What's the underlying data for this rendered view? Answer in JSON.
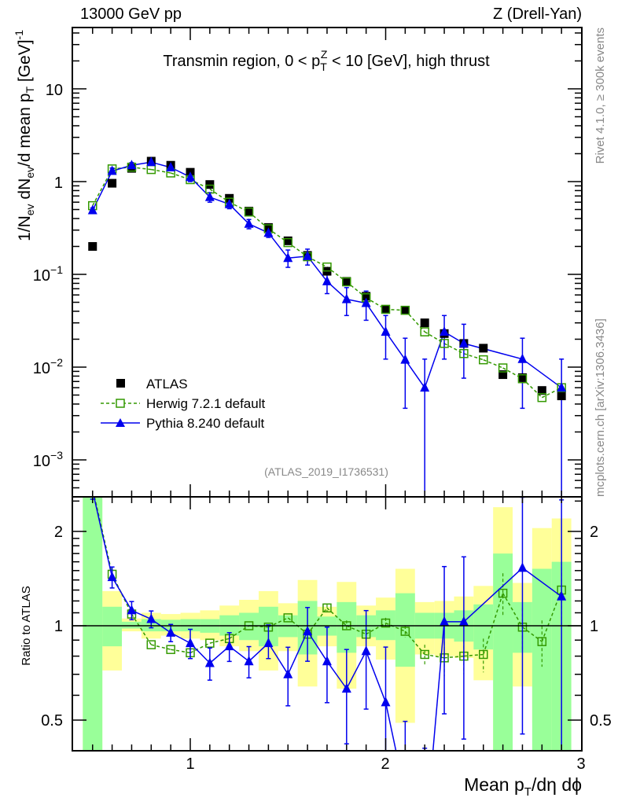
{
  "chart_data": {
    "type": "line",
    "header_left": "13000 GeV pp",
    "header_right": "Z (Drell-Yan)",
    "title": {
      "pre": "Transmin region, 0 < p",
      "sub": "T",
      "sup": "Z",
      "post": " < 10 [GeV], high thrust"
    },
    "ylabel": {
      "a": "1/N",
      "a_sub": "ev",
      "b": " dN",
      "b_sub": "ev",
      "c": "/d mean p",
      "c_sub": "T",
      "d": " [GeV]",
      "d_sup": "-1"
    },
    "xlabel": {
      "a": "Mean p",
      "a_sub": "T",
      "b": "/dη dϕ"
    },
    "ratio_ylabel": "Ratio to ATLAS",
    "side_text_top": "Rivet 4.1.0, ≥ 300k events",
    "side_text_bottom": "mcplots.cern.ch [arXiv:1306.3436]",
    "watermark": "(ATLAS_2019_I1736531)",
    "xlim": [
      0.4,
      3.0
    ],
    "ylim": [
      0.0004,
      45
    ],
    "ratio_ylim": [
      0.4,
      2.58
    ],
    "x_tick_labels": [
      "1",
      "2",
      "3"
    ],
    "y_tick_labels": [
      {
        "base": "10",
        "exp": ""
      },
      {
        "base": "1",
        "exp": ""
      },
      {
        "base": "10",
        "exp": "−1"
      },
      {
        "base": "10",
        "exp": "−2"
      },
      {
        "base": "10",
        "exp": "−3"
      }
    ],
    "ratio_tick_labels": [
      "2",
      "1",
      "0.5"
    ],
    "legend_position": "lower-left",
    "x": [
      0.5,
      0.6,
      0.7,
      0.8,
      0.9,
      1.0,
      1.1,
      1.2,
      1.3,
      1.4,
      1.5,
      1.6,
      1.7,
      1.8,
      1.9,
      2.0,
      2.1,
      2.2,
      2.3,
      2.4,
      2.5,
      2.6,
      2.7,
      2.8,
      2.9
    ],
    "series": [
      {
        "name": "ATLAS",
        "color": "#000000",
        "values": [
          0.2,
          0.96,
          1.39,
          1.66,
          1.5,
          1.26,
          0.93,
          0.66,
          0.48,
          0.32,
          0.23,
          0.16,
          0.108,
          0.084,
          0.058,
          0.042,
          0.041,
          0.03,
          0.023,
          0.018,
          0.016,
          0.0083,
          0.0077,
          0.0056,
          0.0049
        ]
      },
      {
        "name": "Herwig 7.2.1 default",
        "color": "#339900",
        "values": [
          0.55,
          1.37,
          1.43,
          1.35,
          1.24,
          1.05,
          0.83,
          0.6,
          0.47,
          0.31,
          0.22,
          0.155,
          0.12,
          0.083,
          0.056,
          0.042,
          0.041,
          0.024,
          0.018,
          0.014,
          0.012,
          0.0098,
          0.0075,
          0.0047,
          0.006
        ],
        "ratio": [
          2.75,
          1.46,
          1.09,
          0.87,
          0.84,
          0.82,
          0.88,
          0.91,
          1.0,
          0.99,
          1.06,
          0.94,
          1.14,
          1.0,
          0.94,
          1.02,
          0.96,
          0.81,
          0.79,
          0.8,
          0.81,
          1.27,
          0.99,
          0.89,
          1.3
        ],
        "ratio_err": [
          0.02,
          0.03,
          0.02,
          0.01,
          0.01,
          0.01,
          0.01,
          0.01,
          0.01,
          0.01,
          0.02,
          0.02,
          0.03,
          0.04,
          0.04,
          0.04,
          0.04,
          0.06,
          0.1,
          0.1,
          0.1,
          0.2,
          0.15,
          0.15,
          0.3
        ]
      },
      {
        "name": "Pythia 8.240 default",
        "color": "#0000ee",
        "values": [
          0.49,
          1.3,
          1.5,
          1.62,
          1.42,
          1.12,
          0.68,
          0.57,
          0.35,
          0.28,
          0.15,
          0.157,
          0.084,
          0.054,
          0.049,
          0.024,
          0.012,
          0.006,
          0.024,
          0.018,
          null,
          null,
          0.0122,
          null,
          0.006
        ],
        "err": [
          [
            0.46,
            0.52
          ],
          [
            1.2,
            1.4
          ],
          [
            1.4,
            1.6
          ],
          [
            1.52,
            1.72
          ],
          [
            1.33,
            1.51
          ],
          [
            1.0,
            1.24
          ],
          [
            0.6,
            0.76
          ],
          [
            0.51,
            0.63
          ],
          [
            0.31,
            0.39
          ],
          [
            0.25,
            0.32
          ],
          [
            0.119,
            0.183
          ],
          [
            0.126,
            0.187
          ],
          [
            0.062,
            0.108
          ],
          [
            0.036,
            0.072
          ],
          [
            0.032,
            0.066
          ],
          [
            0.0122,
            0.036
          ],
          [
            0.0036,
            0.0205
          ],
          [
            1e-05,
            0.0122
          ],
          [
            0.0122,
            0.036
          ],
          [
            0.0076,
            0.029
          ],
          null,
          null,
          [
            0.0036,
            0.0205
          ],
          null,
          [
            1e-05,
            0.0122
          ]
        ],
        "ratio": [
          2.7,
          1.43,
          1.12,
          1.05,
          0.95,
          0.88,
          0.76,
          0.86,
          0.77,
          0.88,
          0.7,
          0.96,
          0.77,
          0.63,
          0.83,
          0.57,
          0.29,
          0.2,
          1.03,
          1.03,
          null,
          null,
          1.53,
          null,
          1.24
        ]
      }
    ],
    "bands": {
      "stat_color": "#99ff99",
      "total_color": "#ffff99",
      "green": [
        [
          0.3,
          3
        ],
        [
          0.86,
          1.15
        ],
        [
          0.98,
          1.03
        ],
        [
          0.96,
          1.05
        ],
        [
          0.96,
          1.045
        ],
        [
          0.96,
          1.05
        ],
        [
          0.95,
          1.05
        ],
        [
          0.93,
          1.08
        ],
        [
          0.9,
          1.1
        ],
        [
          0.86,
          1.15
        ],
        [
          0.92,
          1.08
        ],
        [
          0.81,
          1.2
        ],
        [
          0.93,
          1.07
        ],
        [
          0.82,
          1.19
        ],
        [
          0.92,
          1.08
        ],
        [
          0.9,
          1.12
        ],
        [
          0.74,
          1.27
        ],
        [
          0.91,
          1.1
        ],
        [
          0.91,
          1.1
        ],
        [
          0.89,
          1.12
        ],
        [
          0.84,
          1.17
        ],
        [
          0.3,
          1.7
        ],
        [
          0.82,
          1.19
        ],
        [
          0.3,
          1.52
        ],
        [
          0.3,
          1.6
        ]
      ],
      "yellow": [
        [
          0.3,
          3
        ],
        [
          0.72,
          1.29
        ],
        [
          0.96,
          1.055
        ],
        [
          0.91,
          1.1
        ],
        [
          0.93,
          1.09
        ],
        [
          0.91,
          1.1
        ],
        [
          0.9,
          1.12
        ],
        [
          0.86,
          1.16
        ],
        [
          0.83,
          1.21
        ],
        [
          0.72,
          1.29
        ],
        [
          0.83,
          1.18
        ],
        [
          0.64,
          1.4
        ],
        [
          0.86,
          1.15
        ],
        [
          0.63,
          1.38
        ],
        [
          0.86,
          1.16
        ],
        [
          0.78,
          1.23
        ],
        [
          0.49,
          1.52
        ],
        [
          0.81,
          1.19
        ],
        [
          0.8,
          1.2
        ],
        [
          0.79,
          1.24
        ],
        [
          0.67,
          1.34
        ],
        [
          0.3,
          2.39
        ],
        [
          0.64,
          1.37
        ],
        [
          0.49,
          2.05
        ],
        [
          0.39,
          2.2
        ]
      ]
    }
  }
}
